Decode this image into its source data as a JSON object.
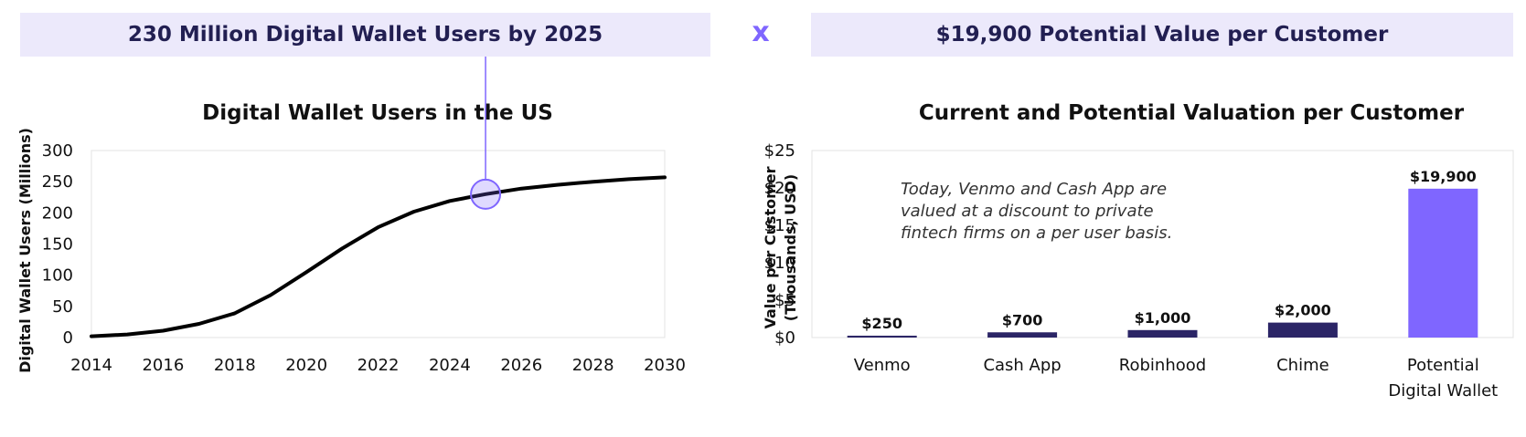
{
  "left_banner": "230 Million Digital Wallet Users by 2025",
  "right_banner": "$19,900 Potential Value per Customer",
  "operator": "x",
  "chart_data": [
    {
      "type": "line",
      "title": "Digital Wallet Users in the US",
      "xlabel": "",
      "ylabel": "Digital Wallet Users (Millions)",
      "x": [
        2014,
        2015,
        2016,
        2017,
        2018,
        2019,
        2020,
        2021,
        2022,
        2023,
        2024,
        2025,
        2026,
        2027,
        2028,
        2029,
        2030
      ],
      "series": [
        {
          "values": [
            2,
            5,
            11,
            22,
            39,
            68,
            105,
            143,
            177,
            202,
            219,
            230,
            239,
            245,
            250,
            254,
            257
          ]
        }
      ],
      "xticks": [
        2014,
        2016,
        2018,
        2020,
        2022,
        2024,
        2026,
        2028,
        2030
      ],
      "yticks": [
        0,
        50,
        100,
        150,
        200,
        250,
        300
      ],
      "xlim": [
        2014,
        2030
      ],
      "ylim": [
        0,
        300
      ],
      "highlight": {
        "x": 2025,
        "y": 230
      },
      "grid": false,
      "line_color": "#000000",
      "highlight_color": "#7f66ff"
    },
    {
      "type": "bar",
      "title": "Current and Potential Valuation per Customer",
      "ylabel_lines": [
        "Value per Customer",
        "(Thousands, USD)"
      ],
      "categories": [
        "Venmo",
        "Cash App",
        "Robinhood",
        "Chime",
        "Potential"
      ],
      "category_second_lines": [
        "",
        "",
        "",
        "",
        "Digital Wallet"
      ],
      "values": [
        0.25,
        0.7,
        1.0,
        2.0,
        19.9
      ],
      "data_labels": [
        "$250",
        "$700",
        "$1,000",
        "$2,000",
        "$19,900"
      ],
      "yticks": [
        0,
        5,
        10,
        15,
        20,
        25
      ],
      "ytick_labels": [
        "$0",
        "$5",
        "$10",
        "$15",
        "$20",
        "$25"
      ],
      "ylim": [
        0,
        25
      ],
      "annotation": [
        "Today, Venmo and Cash App are",
        "valued at a discount to private",
        "fintech firms on a per user basis."
      ],
      "grid": false,
      "colors": [
        "#2b2566",
        "#2b2566",
        "#2b2566",
        "#2b2566",
        "#7f66ff"
      ]
    }
  ]
}
